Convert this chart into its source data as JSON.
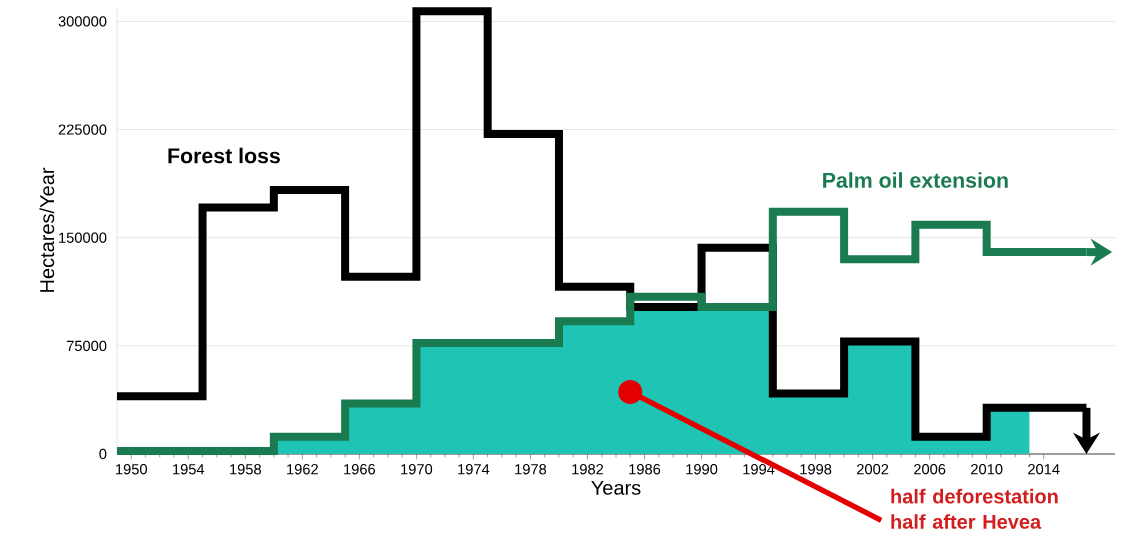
{
  "chart_data": {
    "type": "step",
    "xlabel": "Years",
    "ylabel": "Hectares/Year",
    "xlim": [
      1949,
      2019
    ],
    "ylim": [
      0,
      310000
    ],
    "xticks": [
      1950,
      1954,
      1958,
      1962,
      1966,
      1970,
      1974,
      1978,
      1982,
      1986,
      1990,
      1994,
      1998,
      2002,
      2006,
      2010,
      2014
    ],
    "yticks": [
      0,
      75000,
      150000,
      225000,
      300000
    ],
    "grid": "y",
    "series": [
      {
        "type": "area",
        "color": "#1fc4b4",
        "x": [
          1960,
          1965,
          1970,
          1980,
          1985,
          1995,
          2000,
          2005,
          2010,
          2013
        ],
        "values": [
          12000,
          35000,
          77000,
          92000,
          102000,
          42000,
          78000,
          12000,
          32000,
          32000
        ]
      },
      {
        "name": "Forest loss",
        "color": "#000000",
        "x": [
          1949,
          1955,
          1960,
          1965,
          1970,
          1975,
          1980,
          1985,
          1990,
          1995,
          2000,
          2005,
          2010,
          2017
        ],
        "values": [
          40000,
          171000,
          183000,
          123000,
          307000,
          222000,
          116000,
          102000,
          143000,
          42000,
          78000,
          12000,
          32000,
          32000
        ]
      },
      {
        "name": "Palm oil extension",
        "color": "#1a7a50",
        "x": [
          1949,
          1960,
          1965,
          1970,
          1980,
          1985,
          1990,
          1995,
          2000,
          2005,
          2010,
          2017
        ],
        "values": [
          2000,
          12000,
          35000,
          77000,
          92000,
          109000,
          102000,
          168000,
          135000,
          159000,
          140000,
          140000
        ]
      }
    ],
    "annotations": [
      {
        "text": "half deforestation half after Hevea",
        "x": 1985,
        "y": 43000
      }
    ]
  }
}
